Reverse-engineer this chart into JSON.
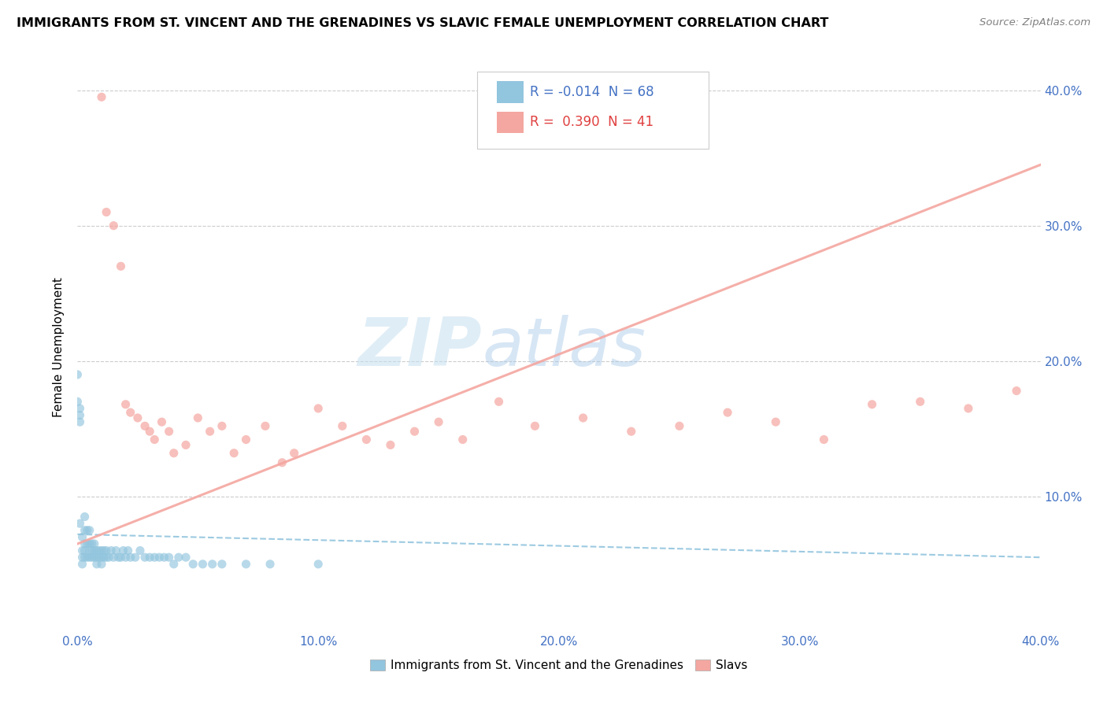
{
  "title": "IMMIGRANTS FROM ST. VINCENT AND THE GRENADINES VS SLAVIC FEMALE UNEMPLOYMENT CORRELATION CHART",
  "source": "Source: ZipAtlas.com",
  "ylabel": "Female Unemployment",
  "watermark_zip": "ZIP",
  "watermark_atlas": "atlas",
  "blue_color": "#92c5de",
  "pink_color": "#f4a6a0",
  "blue_scatter_x": [
    0.0,
    0.0,
    0.001,
    0.001,
    0.001,
    0.001,
    0.002,
    0.002,
    0.002,
    0.002,
    0.003,
    0.003,
    0.003,
    0.003,
    0.003,
    0.004,
    0.004,
    0.004,
    0.005,
    0.005,
    0.005,
    0.005,
    0.006,
    0.006,
    0.006,
    0.007,
    0.007,
    0.007,
    0.008,
    0.008,
    0.008,
    0.009,
    0.009,
    0.01,
    0.01,
    0.01,
    0.011,
    0.011,
    0.012,
    0.012,
    0.013,
    0.014,
    0.015,
    0.016,
    0.017,
    0.018,
    0.019,
    0.02,
    0.021,
    0.022,
    0.024,
    0.026,
    0.028,
    0.03,
    0.032,
    0.034,
    0.036,
    0.038,
    0.04,
    0.042,
    0.045,
    0.048,
    0.052,
    0.056,
    0.06,
    0.07,
    0.08,
    0.1
  ],
  "blue_scatter_y": [
    0.19,
    0.17,
    0.165,
    0.16,
    0.155,
    0.08,
    0.07,
    0.06,
    0.055,
    0.05,
    0.085,
    0.075,
    0.065,
    0.06,
    0.055,
    0.075,
    0.065,
    0.055,
    0.075,
    0.065,
    0.06,
    0.055,
    0.065,
    0.06,
    0.055,
    0.065,
    0.06,
    0.055,
    0.06,
    0.055,
    0.05,
    0.06,
    0.055,
    0.06,
    0.055,
    0.05,
    0.06,
    0.055,
    0.06,
    0.055,
    0.055,
    0.06,
    0.055,
    0.06,
    0.055,
    0.055,
    0.06,
    0.055,
    0.06,
    0.055,
    0.055,
    0.06,
    0.055,
    0.055,
    0.055,
    0.055,
    0.055,
    0.055,
    0.05,
    0.055,
    0.055,
    0.05,
    0.05,
    0.05,
    0.05,
    0.05,
    0.05,
    0.05
  ],
  "pink_scatter_x": [
    0.01,
    0.012,
    0.015,
    0.018,
    0.02,
    0.022,
    0.025,
    0.028,
    0.03,
    0.032,
    0.035,
    0.038,
    0.04,
    0.045,
    0.05,
    0.055,
    0.06,
    0.065,
    0.07,
    0.078,
    0.085,
    0.09,
    0.1,
    0.11,
    0.12,
    0.13,
    0.14,
    0.15,
    0.16,
    0.175,
    0.19,
    0.21,
    0.23,
    0.25,
    0.27,
    0.29,
    0.31,
    0.33,
    0.35,
    0.37,
    0.39
  ],
  "pink_scatter_y": [
    0.395,
    0.31,
    0.3,
    0.27,
    0.168,
    0.162,
    0.158,
    0.152,
    0.148,
    0.142,
    0.155,
    0.148,
    0.132,
    0.138,
    0.158,
    0.148,
    0.152,
    0.132,
    0.142,
    0.152,
    0.125,
    0.132,
    0.165,
    0.152,
    0.142,
    0.138,
    0.148,
    0.155,
    0.142,
    0.17,
    0.152,
    0.158,
    0.148,
    0.152,
    0.162,
    0.155,
    0.142,
    0.168,
    0.17,
    0.165,
    0.178
  ],
  "blue_trend_x": [
    0.0,
    0.4
  ],
  "blue_trend_y": [
    0.072,
    0.055
  ],
  "pink_trend_x": [
    0.0,
    0.4
  ],
  "pink_trend_y": [
    0.065,
    0.345
  ],
  "xlim": [
    0.0,
    0.4
  ],
  "ylim": [
    0.0,
    0.42
  ],
  "x_ticks": [
    0.0,
    0.1,
    0.2,
    0.3,
    0.4
  ],
  "y_ticks": [
    0.1,
    0.2,
    0.3,
    0.4
  ],
  "legend_r_blue": "R = -0.014",
  "legend_n_blue": "N = 68",
  "legend_r_pink": "R =  0.390",
  "legend_n_pink": "N = 41",
  "legend_label_blue": "Immigrants from St. Vincent and the Grenadines",
  "legend_label_pink": "Slavs"
}
